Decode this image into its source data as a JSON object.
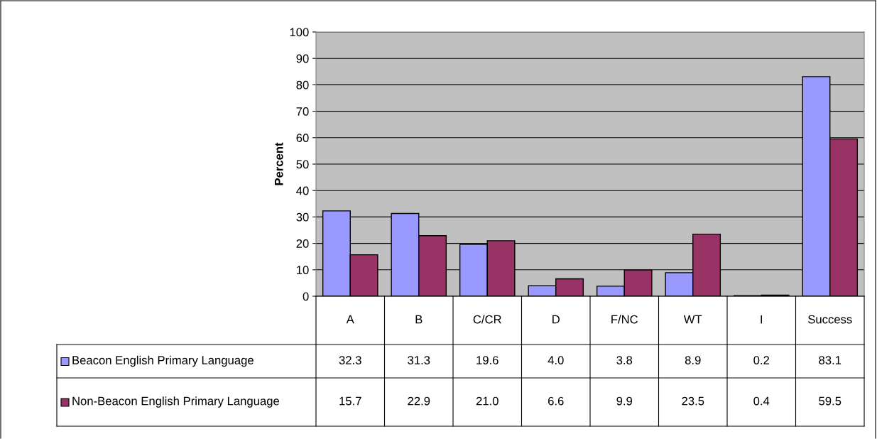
{
  "chart_data": {
    "type": "bar",
    "ylabel": "Percent",
    "categories": [
      "A",
      "B",
      "C/CR",
      "D",
      "F/NC",
      "WT",
      "I",
      "Success"
    ],
    "series": [
      {
        "name": "Beacon English Primary Language",
        "color": "#9999ff",
        "values": [
          32.3,
          31.3,
          19.6,
          4.0,
          3.8,
          8.9,
          0.2,
          83.1
        ],
        "value_labels": [
          "32.3",
          "31.3",
          "19.6",
          "4.0",
          "3.8",
          "8.9",
          "0.2",
          "83.1"
        ]
      },
      {
        "name": "Non-Beacon English Primary Language",
        "color": "#993366",
        "values": [
          15.7,
          22.9,
          21.0,
          6.6,
          9.9,
          23.5,
          0.4,
          59.5
        ],
        "value_labels": [
          "15.7",
          "22.9",
          "21.0",
          "6.6",
          "9.9",
          "23.5",
          "0.4",
          "59.5"
        ]
      }
    ],
    "ylim": [
      0,
      100
    ],
    "yticks": [
      0,
      10,
      20,
      30,
      40,
      50,
      60,
      70,
      80,
      90,
      100
    ],
    "grid": "y",
    "legend": "bottom"
  }
}
